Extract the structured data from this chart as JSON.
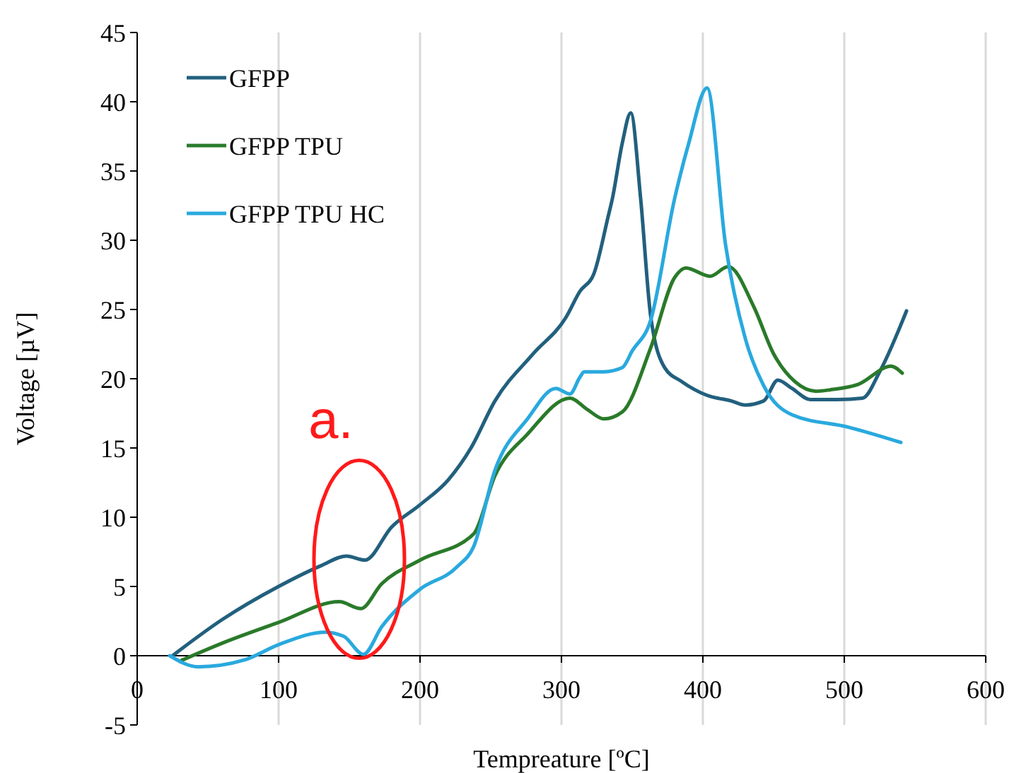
{
  "chart_data": {
    "type": "line",
    "xlabel": "Tempreature [ºC]",
    "ylabel": "Voltage [µV]",
    "xlim": [
      0,
      600
    ],
    "xticks": [
      0,
      100,
      200,
      300,
      400,
      500,
      600
    ],
    "ylim": [
      -5,
      45
    ],
    "yticks": [
      -5,
      0,
      5,
      10,
      15,
      20,
      25,
      30,
      35,
      40,
      45
    ],
    "grid": "x",
    "legend": "top left",
    "marker": "none",
    "line_style": "solid",
    "annotations": [
      {
        "text": "a.",
        "x": 157,
        "y": 4
      }
    ],
    "series": [
      {
        "name": "GFPP",
        "color": "#22607e",
        "x": [
          25,
          60,
          100,
          130,
          148,
          161,
          180,
          200,
          220,
          236,
          253,
          280,
          303,
          313,
          323,
          333,
          336,
          343,
          349,
          356,
          363,
          373,
          385,
          403,
          420,
          430,
          443,
          453,
          463,
          476,
          495,
          513,
          525,
          544
        ],
        "values": [
          0,
          2.6,
          5.0,
          6.5,
          7.2,
          6.9,
          9.3,
          10.9,
          12.7,
          15.0,
          18.4,
          21.8,
          24.4,
          26.3,
          27.6,
          31.7,
          33,
          37,
          39.2,
          33,
          24.6,
          20.8,
          19.8,
          18.8,
          18.4,
          18.1,
          18.4,
          19.9,
          19.3,
          18.5,
          18.5,
          18.6,
          20.5,
          24.9
        ]
      },
      {
        "name": "GFPP TPU",
        "color": "#2a7a2a",
        "x": [
          30,
          60,
          100,
          143,
          158,
          173,
          200,
          238,
          253,
          276,
          306,
          318,
          330,
          343,
          363,
          380,
          388,
          405,
          418,
          436,
          450,
          465,
          480,
          490,
          510,
          533,
          541
        ],
        "values": [
          -0.4,
          0.9,
          2.4,
          3.9,
          3.4,
          5.2,
          6.9,
          8.8,
          13.0,
          16.0,
          18.6,
          17.8,
          17.1,
          17.6,
          22.2,
          27.3,
          28.0,
          27.4,
          28.1,
          25.2,
          21.8,
          19.8,
          19.1,
          19.2,
          19.6,
          20.9,
          20.4
        ]
      },
      {
        "name": "GFPP TPU HC",
        "color": "#29a9de",
        "x": [
          23,
          43,
          76,
          100,
          133,
          146,
          160,
          173,
          200,
          226,
          238,
          253,
          276,
          296,
          306,
          313,
          316,
          330,
          343,
          350,
          363,
          380,
          390,
          403,
          416,
          430,
          443,
          463,
          503,
          540
        ],
        "values": [
          0,
          -0.8,
          -0.3,
          0.8,
          1.7,
          1.4,
          0.1,
          2.1,
          4.8,
          6.4,
          7.9,
          13.4,
          17.1,
          19.3,
          18.9,
          20.1,
          20.5,
          20.5,
          20.8,
          22,
          24.2,
          33,
          37,
          41,
          29.7,
          22.9,
          19.5,
          17.4,
          16.5,
          15.4
        ]
      }
    ]
  }
}
